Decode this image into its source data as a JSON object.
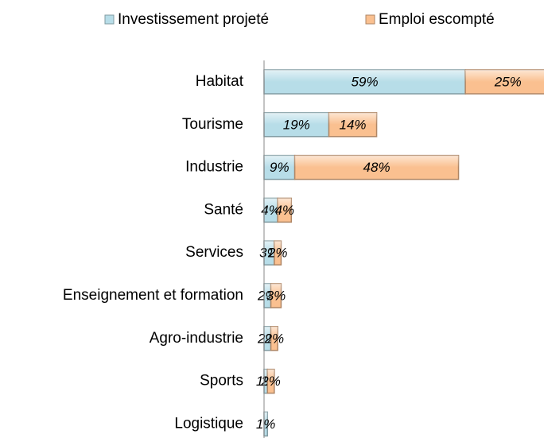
{
  "chart_data": {
    "type": "stacked-bar-horizontal",
    "categories": [
      "Habitat",
      "Tourisme",
      "Industrie",
      "Santé",
      "Services",
      "Enseignement et formation",
      "Agro-industrie",
      "Sports",
      "Logistique"
    ],
    "series": [
      {
        "name": "Investissement projeté",
        "color": "#b7dde8",
        "values": [
          59,
          19,
          9,
          4,
          3,
          2,
          2,
          1,
          1
        ],
        "value_labels": [
          "59%",
          "19%",
          "9%",
          "4%",
          "3%",
          "2%",
          "2%",
          "1%",
          "1%"
        ]
      },
      {
        "name": "Emploi escompté",
        "color": "#fac090",
        "values": [
          25,
          14,
          48,
          4,
          2,
          3,
          2,
          2,
          null
        ],
        "value_labels": [
          "25%",
          "14%",
          "48%",
          "4%",
          "2%",
          "3%",
          "2%",
          "2%",
          null
        ]
      }
    ]
  }
}
